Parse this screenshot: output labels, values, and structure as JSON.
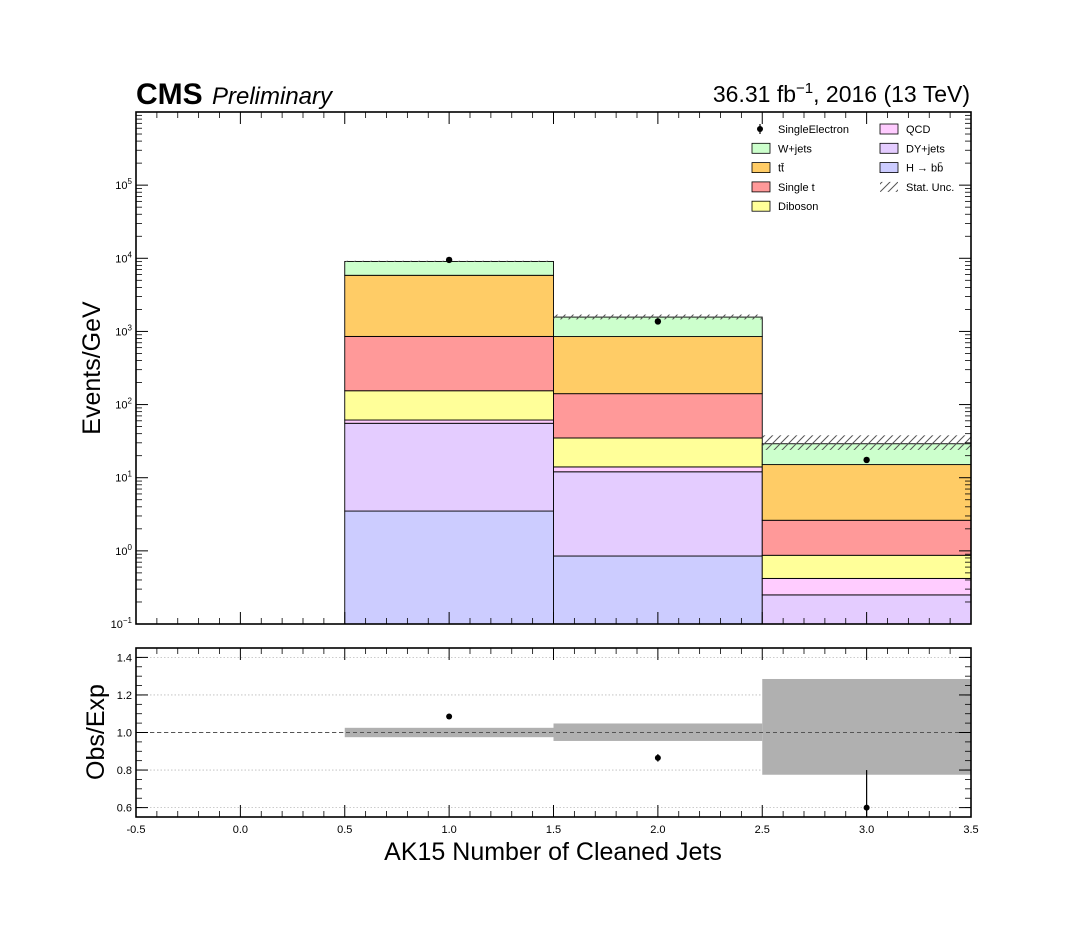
{
  "header": {
    "experiment": "CMS",
    "status": "Preliminary",
    "lumi_prefix": "36.31 fb",
    "lumi_exp": "−1",
    "lumi_suffix": ", 2016 (13 TeV)"
  },
  "chart_data": [
    {
      "type": "bar",
      "subtype": "stacked-histogram",
      "ylabel": "Events/GeV",
      "yscale": "log",
      "ylim": [
        0.1,
        1000000
      ],
      "xlim": [
        -0.5,
        3.5
      ],
      "bins": [
        {
          "low": 0.5,
          "high": 1.5,
          "center": 1.0
        },
        {
          "low": 1.5,
          "high": 2.5,
          "center": 2.0
        },
        {
          "low": 2.5,
          "high": 3.5,
          "center": 3.0
        }
      ],
      "series": [
        {
          "name": "H → bb̄",
          "color": "#ccccff",
          "values": [
            3.5,
            0.85,
            0.0
          ]
        },
        {
          "name": "DY+jets",
          "color": "#e4ccff",
          "values": [
            52,
            11.2,
            0.25
          ]
        },
        {
          "name": "QCD",
          "color": "#ffccff",
          "values": [
            6,
            2,
            0.17
          ]
        },
        {
          "name": "Diboson",
          "color": "#ffff99",
          "values": [
            93,
            20.9,
            0.45
          ]
        },
        {
          "name": "Single t",
          "color": "#ff9999",
          "values": [
            700,
            106,
            1.75
          ]
        },
        {
          "name": "tt̄",
          "color": "#ffcc66",
          "values": [
            5000,
            710,
            12.5
          ]
        },
        {
          "name": "W+jets",
          "color": "#ccffcc",
          "values": [
            3200,
            720,
            14.0
          ]
        }
      ],
      "stat_unc_up": [
        9250,
        1700,
        38
      ],
      "stat_unc_down": [
        8900,
        1460,
        24
      ],
      "data": {
        "name": "SingleElectron",
        "x": [
          1.0,
          2.0,
          3.0
        ],
        "y": [
          9500,
          1370,
          17.5
        ]
      },
      "legend": {
        "placement": "top-right",
        "entries": [
          "SingleElectron",
          "QCD",
          "W+jets",
          "DY+jets",
          "tt̄",
          "H → bb̄",
          "Single t",
          "Stat. Unc.",
          "Diboson"
        ]
      },
      "stat_unc_label": "Stat. Unc."
    },
    {
      "type": "scatter",
      "subtype": "ratio-panel",
      "xlabel": "AK15 Number of Cleaned Jets",
      "ylabel": "Obs/Exp",
      "xlim": [
        -0.5,
        3.5
      ],
      "ylim": [
        0.55,
        1.45
      ],
      "yticks": [
        "0.6",
        "0.8",
        "1.0",
        "1.2",
        "1.4"
      ],
      "xticks": [
        "-0.5",
        "0.0",
        "0.5",
        "1.0",
        "1.5",
        "2.0",
        "2.5",
        "3.0",
        "3.5"
      ],
      "reference_line": 1.0,
      "unc_bands": [
        {
          "low": 0.5,
          "high": 1.5,
          "down": 0.975,
          "up": 1.025
        },
        {
          "low": 1.5,
          "high": 2.5,
          "down": 0.955,
          "up": 1.048
        },
        {
          "low": 2.5,
          "high": 3.5,
          "down": 0.775,
          "up": 1.285
        }
      ],
      "points": [
        {
          "x": 1.0,
          "y": 1.085,
          "err": 0.008
        },
        {
          "x": 2.0,
          "y": 0.865,
          "err": 0.02
        },
        {
          "x": 3.0,
          "y": 0.6,
          "err": 0.2
        }
      ]
    }
  ]
}
